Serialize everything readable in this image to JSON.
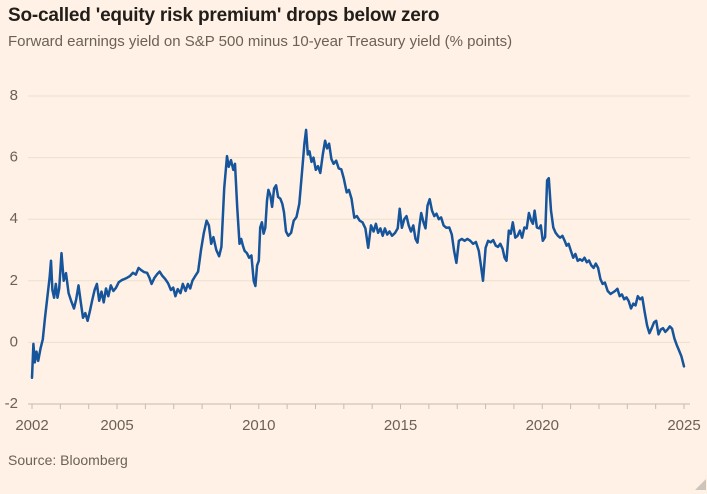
{
  "header": {
    "title": "So-called 'equity risk premium' drops below zero",
    "subtitle": "Forward earnings yield on S&P 500 minus 10-year Treasury yield (% points)"
  },
  "footer": {
    "source": "Source: Bloomberg"
  },
  "colors": {
    "background": "#FFF1E5",
    "line": "#16549B",
    "grid": "#ECDFCE",
    "axis": "#C7BBAC",
    "label_text": "#6B6156",
    "title_text": "#221E1A",
    "resize_handle": "#CDC5BC"
  },
  "chart_data": {
    "type": "line",
    "title": "So-called 'equity risk premium' drops below zero",
    "subtitle": "Forward earnings yield on S&P 500 minus 10-year Treasury yield (% points)",
    "source": "Source: Bloomberg",
    "xlabel": "",
    "ylabel": "",
    "x_range": [
      2002,
      2025
    ],
    "ylim": [
      -2,
      8
    ],
    "y_ticks": [
      -2,
      0,
      2,
      4,
      6,
      8
    ],
    "x_labeled_ticks": [
      2002,
      2005,
      2010,
      2015,
      2020,
      2025
    ],
    "x_minor_tick_step": 1,
    "grid": "horizontal",
    "legend_position": "none",
    "series": [
      {
        "name": "S&P 500 forward earnings yield minus 10-year Treasury yield (% points)",
        "points": [
          [
            2002.0,
            -1.15
          ],
          [
            2002.05,
            -0.05
          ],
          [
            2002.1,
            -0.65
          ],
          [
            2002.16,
            -0.3
          ],
          [
            2002.22,
            -0.6
          ],
          [
            2002.3,
            -0.2
          ],
          [
            2002.38,
            0.1
          ],
          [
            2002.46,
            0.8
          ],
          [
            2002.54,
            1.45
          ],
          [
            2002.62,
            2.1
          ],
          [
            2002.67,
            2.65
          ],
          [
            2002.72,
            1.7
          ],
          [
            2002.78,
            1.45
          ],
          [
            2002.84,
            1.9
          ],
          [
            2002.9,
            1.45
          ],
          [
            2002.96,
            1.75
          ],
          [
            2003.04,
            2.9
          ],
          [
            2003.12,
            2.0
          ],
          [
            2003.2,
            2.25
          ],
          [
            2003.29,
            1.6
          ],
          [
            2003.38,
            1.35
          ],
          [
            2003.48,
            1.1
          ],
          [
            2003.56,
            1.4
          ],
          [
            2003.64,
            1.85
          ],
          [
            2003.72,
            1.3
          ],
          [
            2003.8,
            0.8
          ],
          [
            2003.88,
            0.95
          ],
          [
            2003.96,
            0.7
          ],
          [
            2004.04,
            1.0
          ],
          [
            2004.12,
            1.35
          ],
          [
            2004.21,
            1.7
          ],
          [
            2004.29,
            1.9
          ],
          [
            2004.37,
            1.35
          ],
          [
            2004.45,
            1.65
          ],
          [
            2004.53,
            1.3
          ],
          [
            2004.61,
            1.75
          ],
          [
            2004.69,
            1.5
          ],
          [
            2004.78,
            1.85
          ],
          [
            2004.87,
            1.67
          ],
          [
            2004.96,
            1.77
          ],
          [
            2005.06,
            1.95
          ],
          [
            2005.16,
            2.02
          ],
          [
            2005.26,
            2.06
          ],
          [
            2005.36,
            2.1
          ],
          [
            2005.46,
            2.16
          ],
          [
            2005.56,
            2.26
          ],
          [
            2005.66,
            2.2
          ],
          [
            2005.76,
            2.42
          ],
          [
            2005.86,
            2.34
          ],
          [
            2005.96,
            2.28
          ],
          [
            2006.06,
            2.26
          ],
          [
            2006.14,
            2.1
          ],
          [
            2006.22,
            1.9
          ],
          [
            2006.32,
            2.1
          ],
          [
            2006.42,
            2.22
          ],
          [
            2006.5,
            2.3
          ],
          [
            2006.6,
            2.16
          ],
          [
            2006.7,
            2.06
          ],
          [
            2006.8,
            1.92
          ],
          [
            2006.9,
            1.7
          ],
          [
            2006.98,
            1.78
          ],
          [
            2007.06,
            1.5
          ],
          [
            2007.14,
            1.73
          ],
          [
            2007.24,
            1.6
          ],
          [
            2007.32,
            1.9
          ],
          [
            2007.42,
            1.67
          ],
          [
            2007.5,
            1.9
          ],
          [
            2007.58,
            1.75
          ],
          [
            2007.66,
            2.0
          ],
          [
            2007.76,
            2.16
          ],
          [
            2007.86,
            2.3
          ],
          [
            2007.96,
            3.0
          ],
          [
            2008.06,
            3.55
          ],
          [
            2008.16,
            3.95
          ],
          [
            2008.24,
            3.8
          ],
          [
            2008.32,
            3.2
          ],
          [
            2008.4,
            3.42
          ],
          [
            2008.5,
            3.0
          ],
          [
            2008.6,
            2.8
          ],
          [
            2008.68,
            3.1
          ],
          [
            2008.78,
            5.0
          ],
          [
            2008.88,
            6.05
          ],
          [
            2008.94,
            5.7
          ],
          [
            2009.02,
            5.92
          ],
          [
            2009.1,
            5.6
          ],
          [
            2009.16,
            5.8
          ],
          [
            2009.24,
            4.4
          ],
          [
            2009.32,
            3.2
          ],
          [
            2009.38,
            3.36
          ],
          [
            2009.44,
            3.14
          ],
          [
            2009.5,
            2.97
          ],
          [
            2009.58,
            2.9
          ],
          [
            2009.66,
            2.75
          ],
          [
            2009.74,
            2.82
          ],
          [
            2009.82,
            2.0
          ],
          [
            2009.88,
            1.83
          ],
          [
            2009.94,
            2.5
          ],
          [
            2010.0,
            2.65
          ],
          [
            2010.05,
            3.73
          ],
          [
            2010.11,
            3.9
          ],
          [
            2010.17,
            3.53
          ],
          [
            2010.23,
            3.72
          ],
          [
            2010.29,
            4.6
          ],
          [
            2010.34,
            4.95
          ],
          [
            2010.41,
            4.77
          ],
          [
            2010.47,
            4.4
          ],
          [
            2010.54,
            5.0
          ],
          [
            2010.61,
            5.1
          ],
          [
            2010.68,
            4.72
          ],
          [
            2010.76,
            4.67
          ],
          [
            2010.83,
            4.5
          ],
          [
            2010.89,
            4.22
          ],
          [
            2010.96,
            3.6
          ],
          [
            2011.04,
            3.46
          ],
          [
            2011.14,
            3.56
          ],
          [
            2011.23,
            3.95
          ],
          [
            2011.33,
            4.07
          ],
          [
            2011.43,
            4.5
          ],
          [
            2011.53,
            5.6
          ],
          [
            2011.61,
            6.45
          ],
          [
            2011.67,
            6.9
          ],
          [
            2011.73,
            6.1
          ],
          [
            2011.79,
            6.2
          ],
          [
            2011.86,
            5.86
          ],
          [
            2011.93,
            6.0
          ],
          [
            2012.01,
            5.6
          ],
          [
            2012.09,
            5.72
          ],
          [
            2012.17,
            5.5
          ],
          [
            2012.26,
            6.1
          ],
          [
            2012.34,
            6.55
          ],
          [
            2012.41,
            6.3
          ],
          [
            2012.48,
            6.45
          ],
          [
            2012.56,
            5.95
          ],
          [
            2012.64,
            5.8
          ],
          [
            2012.73,
            5.9
          ],
          [
            2012.82,
            5.65
          ],
          [
            2012.91,
            5.62
          ],
          [
            2013.0,
            5.32
          ],
          [
            2013.1,
            4.87
          ],
          [
            2013.18,
            4.95
          ],
          [
            2013.27,
            4.67
          ],
          [
            2013.37,
            4.05
          ],
          [
            2013.46,
            4.1
          ],
          [
            2013.56,
            3.95
          ],
          [
            2013.66,
            3.9
          ],
          [
            2013.76,
            3.7
          ],
          [
            2013.86,
            3.07
          ],
          [
            2013.96,
            3.8
          ],
          [
            2014.05,
            3.6
          ],
          [
            2014.13,
            3.85
          ],
          [
            2014.21,
            3.56
          ],
          [
            2014.29,
            3.7
          ],
          [
            2014.37,
            3.46
          ],
          [
            2014.45,
            3.7
          ],
          [
            2014.53,
            3.5
          ],
          [
            2014.61,
            3.6
          ],
          [
            2014.7,
            3.46
          ],
          [
            2014.8,
            3.55
          ],
          [
            2014.9,
            3.7
          ],
          [
            2014.97,
            4.34
          ],
          [
            2015.05,
            3.72
          ],
          [
            2015.13,
            4.0
          ],
          [
            2015.21,
            4.1
          ],
          [
            2015.29,
            3.8
          ],
          [
            2015.37,
            3.6
          ],
          [
            2015.45,
            3.8
          ],
          [
            2015.53,
            3.36
          ],
          [
            2015.6,
            3.24
          ],
          [
            2015.67,
            3.8
          ],
          [
            2015.73,
            4.2
          ],
          [
            2015.81,
            3.9
          ],
          [
            2015.88,
            3.7
          ],
          [
            2015.95,
            4.44
          ],
          [
            2016.03,
            4.65
          ],
          [
            2016.11,
            4.28
          ],
          [
            2016.19,
            4.1
          ],
          [
            2016.27,
            4.18
          ],
          [
            2016.35,
            4.0
          ],
          [
            2016.43,
            4.06
          ],
          [
            2016.52,
            3.8
          ],
          [
            2016.62,
            3.72
          ],
          [
            2016.72,
            3.73
          ],
          [
            2016.81,
            3.5
          ],
          [
            2016.89,
            2.97
          ],
          [
            2016.97,
            2.58
          ],
          [
            2017.06,
            3.3
          ],
          [
            2017.16,
            3.36
          ],
          [
            2017.26,
            3.3
          ],
          [
            2017.36,
            3.36
          ],
          [
            2017.46,
            3.3
          ],
          [
            2017.56,
            3.2
          ],
          [
            2017.66,
            3.26
          ],
          [
            2017.76,
            2.97
          ],
          [
            2017.83,
            2.55
          ],
          [
            2017.91,
            2.0
          ],
          [
            2018.0,
            3.07
          ],
          [
            2018.09,
            3.3
          ],
          [
            2018.18,
            3.25
          ],
          [
            2018.27,
            3.32
          ],
          [
            2018.36,
            3.14
          ],
          [
            2018.44,
            3.1
          ],
          [
            2018.52,
            3.2
          ],
          [
            2018.6,
            3.04
          ],
          [
            2018.67,
            2.75
          ],
          [
            2018.74,
            2.65
          ],
          [
            2018.82,
            3.63
          ],
          [
            2018.89,
            3.53
          ],
          [
            2018.96,
            3.9
          ],
          [
            2019.05,
            3.4
          ],
          [
            2019.13,
            3.46
          ],
          [
            2019.21,
            3.63
          ],
          [
            2019.29,
            3.4
          ],
          [
            2019.37,
            3.73
          ],
          [
            2019.45,
            3.7
          ],
          [
            2019.53,
            4.2
          ],
          [
            2019.61,
            3.95
          ],
          [
            2019.67,
            3.85
          ],
          [
            2019.73,
            4.28
          ],
          [
            2019.81,
            3.73
          ],
          [
            2019.89,
            3.7
          ],
          [
            2019.95,
            3.8
          ],
          [
            2020.02,
            3.3
          ],
          [
            2020.1,
            3.42
          ],
          [
            2020.17,
            5.26
          ],
          [
            2020.23,
            5.33
          ],
          [
            2020.31,
            4.28
          ],
          [
            2020.39,
            3.73
          ],
          [
            2020.47,
            3.56
          ],
          [
            2020.55,
            3.46
          ],
          [
            2020.63,
            3.4
          ],
          [
            2020.71,
            3.46
          ],
          [
            2020.79,
            3.3
          ],
          [
            2020.86,
            3.14
          ],
          [
            2020.93,
            3.2
          ],
          [
            2021.01,
            2.97
          ],
          [
            2021.09,
            2.75
          ],
          [
            2021.17,
            2.87
          ],
          [
            2021.25,
            2.65
          ],
          [
            2021.33,
            2.7
          ],
          [
            2021.41,
            2.65
          ],
          [
            2021.49,
            2.75
          ],
          [
            2021.57,
            2.6
          ],
          [
            2021.65,
            2.66
          ],
          [
            2021.73,
            2.5
          ],
          [
            2021.81,
            2.42
          ],
          [
            2021.89,
            2.56
          ],
          [
            2021.97,
            2.42
          ],
          [
            2022.05,
            2.06
          ],
          [
            2022.13,
            1.9
          ],
          [
            2022.21,
            1.94
          ],
          [
            2022.31,
            1.67
          ],
          [
            2022.41,
            1.57
          ],
          [
            2022.49,
            1.62
          ],
          [
            2022.57,
            1.67
          ],
          [
            2022.65,
            1.74
          ],
          [
            2022.73,
            1.5
          ],
          [
            2022.81,
            1.56
          ],
          [
            2022.89,
            1.4
          ],
          [
            2022.97,
            1.46
          ],
          [
            2023.05,
            1.34
          ],
          [
            2023.13,
            1.1
          ],
          [
            2023.21,
            1.26
          ],
          [
            2023.29,
            1.2
          ],
          [
            2023.37,
            1.5
          ],
          [
            2023.45,
            1.4
          ],
          [
            2023.53,
            1.46
          ],
          [
            2023.61,
            1.0
          ],
          [
            2023.7,
            0.55
          ],
          [
            2023.78,
            0.3
          ],
          [
            2023.86,
            0.46
          ],
          [
            2023.94,
            0.65
          ],
          [
            2024.02,
            0.7
          ],
          [
            2024.1,
            0.26
          ],
          [
            2024.18,
            0.42
          ],
          [
            2024.26,
            0.46
          ],
          [
            2024.34,
            0.34
          ],
          [
            2024.42,
            0.42
          ],
          [
            2024.5,
            0.52
          ],
          [
            2024.58,
            0.44
          ],
          [
            2024.66,
            0.13
          ],
          [
            2024.74,
            -0.07
          ],
          [
            2024.82,
            -0.25
          ],
          [
            2024.91,
            -0.45
          ],
          [
            2025.0,
            -0.78
          ]
        ]
      }
    ]
  }
}
